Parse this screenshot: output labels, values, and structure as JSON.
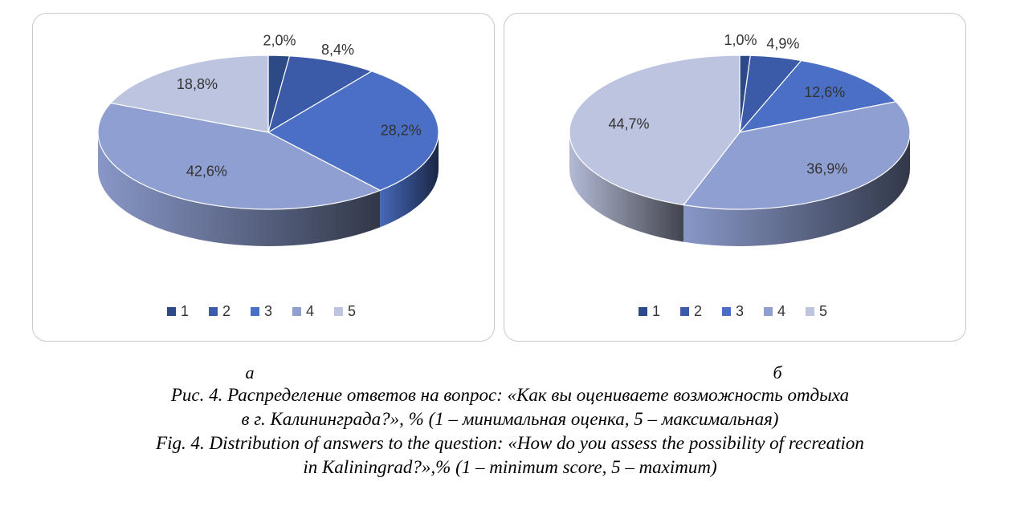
{
  "chart_data": [
    {
      "type": "pie",
      "panel_label": "а",
      "categories": [
        "1",
        "2",
        "3",
        "4",
        "5"
      ],
      "values": [
        2.0,
        8.4,
        28.2,
        42.6,
        18.8
      ],
      "value_labels": [
        "2,0%",
        "8,4%",
        "28,2%",
        "42,6%",
        "18,8%"
      ],
      "legend": [
        "1",
        "2",
        "3",
        "4",
        "5"
      ],
      "legend_position": "bottom",
      "style": "3d"
    },
    {
      "type": "pie",
      "panel_label": "б",
      "categories": [
        "1",
        "2",
        "3",
        "4",
        "5"
      ],
      "values": [
        1.0,
        4.9,
        12.6,
        36.9,
        44.7
      ],
      "value_labels": [
        "1,0%",
        "4,9%",
        "12,6%",
        "36,9%",
        "44,7%"
      ],
      "legend": [
        "1",
        "2",
        "3",
        "4",
        "5"
      ],
      "legend_position": "bottom",
      "style": "3d"
    }
  ],
  "colors": [
    "#2e4a86",
    "#3b5aa8",
    "#4b6fc4",
    "#8f9fd1",
    "#bcc4e0"
  ],
  "caption": {
    "ru_line1": "Рис. 4. Распределение ответов на вопрос: «Как вы оцениваете возможность отдыха",
    "ru_line2": "в г. Калининграда?», % (1 – минимальная оценка, 5 – максимальная)",
    "en_line1": "Fig. 4. Distribution of answers to the question: «How do you assess the possibility of recreation",
    "en_line2": "in Kaliningrad?»,% (1 – minimum score, 5 – maximum)"
  }
}
